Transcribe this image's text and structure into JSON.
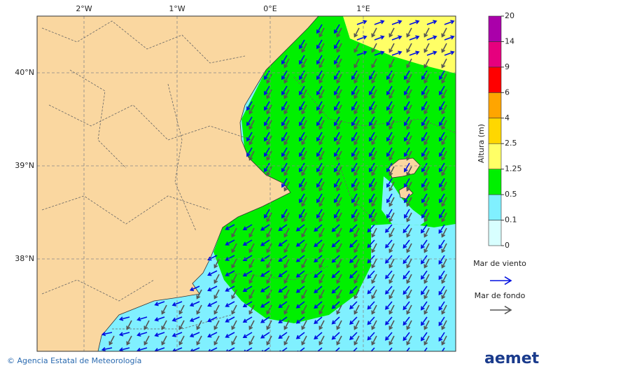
{
  "map": {
    "x_labels": [
      "2°W",
      "1°W",
      "0°E",
      "1°E"
    ],
    "y_labels": [
      "40°N",
      "39°N",
      "38°N"
    ]
  },
  "legend": {
    "title": "Altura (m)",
    "levels": [
      0,
      0.1,
      0.5,
      1.25,
      2.5,
      4,
      6,
      9,
      14,
      20
    ],
    "colors": [
      "#d8ffff",
      "#80f0ff",
      "#00f000",
      "#ffff66",
      "#ffd700",
      "#ffa500",
      "#ff0000",
      "#e6007e",
      "#aa00aa"
    ],
    "wind_label": "Mar de viento",
    "wind_color": "#0010e0",
    "swell_label": "Mar de fondo",
    "swell_color": "#555555"
  },
  "footer": {
    "copyright": "© Agencia Estatal de Meteorología",
    "logo": "aemet"
  }
}
